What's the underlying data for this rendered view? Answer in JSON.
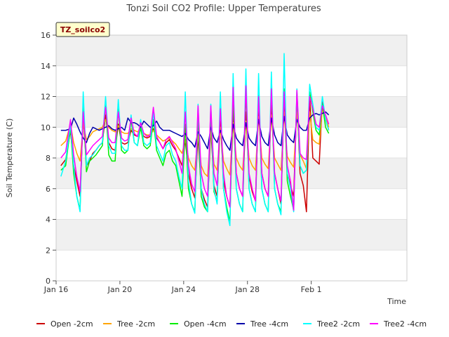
{
  "chart_data": {
    "type": "line",
    "title": "Tonzi Soil CO2 Profile: Upper Temperatures",
    "xlabel": "Time",
    "ylabel": "Soil Temperature (C)",
    "ylim": [
      0,
      16
    ],
    "yticks": [
      "0",
      "2",
      "4",
      "6",
      "8",
      "10",
      "12",
      "14",
      "16"
    ],
    "xlim": [
      0,
      22
    ],
    "xticks": [
      {
        "day": 0,
        "label": "Jan 16"
      },
      {
        "day": 4,
        "label": "Jan 20"
      },
      {
        "day": 8,
        "label": "Jan 24"
      },
      {
        "day": 12,
        "label": "Jan 28"
      },
      {
        "day": 16,
        "label": "Feb 1"
      }
    ],
    "badge": "TZ_soilco2",
    "grid": "horizontal bands",
    "legend_position": "bottom",
    "series": [
      {
        "name": "Open -2cm",
        "color": "#cc0000",
        "x": [
          0.3,
          0.6,
          0.9,
          1.1,
          1.3,
          1.5,
          1.7,
          1.9,
          2.1,
          2.3,
          2.5,
          2.7,
          2.9,
          3.1,
          3.3,
          3.5,
          3.7,
          3.9,
          4.1,
          4.3,
          4.5,
          4.7,
          4.9,
          5.1,
          5.3,
          5.5,
          5.7,
          5.9,
          6.1,
          6.3,
          6.5,
          6.7,
          6.9,
          7.1,
          7.3,
          7.5,
          7.7,
          7.9,
          8.1,
          8.3,
          8.5,
          8.7,
          8.9,
          9.1,
          9.3,
          9.5,
          9.7,
          9.9,
          10.1,
          10.3,
          10.5,
          10.7,
          10.9,
          11.1,
          11.3,
          11.5,
          11.7,
          11.9,
          12.1,
          12.3,
          12.5,
          12.7,
          12.9,
          13.1,
          13.3,
          13.5,
          13.7,
          13.9,
          14.1,
          14.3,
          14.5,
          14.7,
          14.9,
          15.1,
          15.3,
          15.5,
          15.7,
          15.9,
          16.1,
          16.3,
          16.5,
          16.7,
          16.9,
          17.1
        ],
        "y": [
          7.5,
          7.9,
          9.8,
          7.5,
          6.5,
          5.5,
          10.8,
          7.5,
          7.8,
          8.3,
          8.5,
          8.8,
          9.0,
          10.8,
          9.0,
          8.6,
          8.5,
          10.2,
          9.0,
          8.9,
          9.0,
          9.8,
          9.5,
          9.4,
          9.9,
          9.4,
          9.3,
          9.4,
          9.9,
          9.3,
          9.0,
          8.6,
          9.0,
          9.2,
          8.8,
          8.5,
          8.0,
          7.5,
          9.2,
          7.0,
          6.0,
          5.4,
          9.5,
          6.0,
          5.3,
          4.8,
          10.0,
          6.2,
          5.5,
          10.5,
          6.5,
          5.5,
          4.8,
          10.8,
          7.0,
          6.0,
          5.5,
          11.0,
          6.8,
          5.8,
          5.2,
          11.5,
          7.0,
          6.0,
          5.5,
          11.8,
          7.0,
          6.0,
          5.0,
          12.0,
          7.0,
          6.2,
          5.5,
          12.0,
          7.0,
          6.2,
          4.5,
          12.0,
          8.0,
          7.8,
          7.6,
          11.8,
          10.5,
          9.8
        ]
      },
      {
        "name": "Tree -2cm",
        "color": "#ffa500",
        "x": [
          0.3,
          0.6,
          0.9,
          1.1,
          1.3,
          1.5,
          1.7,
          1.9,
          2.1,
          2.3,
          2.5,
          2.7,
          2.9,
          3.1,
          3.3,
          3.5,
          3.7,
          3.9,
          4.1,
          4.3,
          4.5,
          4.7,
          4.9,
          5.1,
          5.3,
          5.5,
          5.7,
          5.9,
          6.1,
          6.3,
          6.5,
          6.7,
          6.9,
          7.1,
          7.3,
          7.5,
          7.7,
          7.9,
          8.1,
          8.3,
          8.5,
          8.7,
          8.9,
          9.1,
          9.3,
          9.5,
          9.7,
          9.9,
          10.1,
          10.3,
          10.5,
          10.7,
          10.9,
          11.1,
          11.3,
          11.5,
          11.7,
          11.9,
          12.1,
          12.3,
          12.5,
          12.7,
          12.9,
          13.1,
          13.3,
          13.5,
          13.7,
          13.9,
          14.1,
          14.3,
          14.5,
          14.7,
          14.9,
          15.1,
          15.3,
          15.5,
          15.7,
          15.9,
          16.1,
          16.3,
          16.5,
          16.7,
          16.9,
          17.1
        ],
        "y": [
          8.8,
          9.1,
          10.2,
          9.0,
          8.3,
          7.8,
          10.3,
          9.2,
          9.4,
          9.7,
          9.8,
          9.9,
          10.0,
          10.5,
          10.0,
          9.8,
          9.7,
          10.1,
          9.7,
          9.6,
          9.6,
          9.9,
          9.8,
          9.7,
          9.9,
          9.6,
          9.5,
          9.5,
          9.8,
          9.5,
          9.3,
          9.1,
          9.2,
          9.3,
          9.1,
          8.9,
          8.6,
          8.3,
          9.2,
          8.0,
          7.5,
          7.2,
          9.5,
          7.5,
          7.0,
          6.8,
          9.8,
          7.6,
          7.2,
          10.0,
          7.8,
          7.3,
          6.9,
          10.3,
          8.0,
          7.5,
          7.2,
          10.4,
          8.0,
          7.5,
          7.2,
          10.7,
          8.0,
          7.6,
          7.3,
          10.8,
          8.0,
          7.6,
          7.2,
          11.0,
          8.1,
          7.7,
          7.4,
          11.0,
          8.2,
          7.8,
          7.3,
          11.0,
          9.2,
          9.0,
          8.9,
          11.2,
          10.8,
          10.0
        ]
      },
      {
        "name": "Open -4cm",
        "color": "#00ee00",
        "x": [
          0.3,
          0.6,
          0.9,
          1.1,
          1.3,
          1.5,
          1.7,
          1.9,
          2.1,
          2.3,
          2.5,
          2.7,
          2.9,
          3.1,
          3.3,
          3.5,
          3.7,
          3.9,
          4.1,
          4.3,
          4.5,
          4.7,
          4.9,
          5.1,
          5.3,
          5.5,
          5.7,
          5.9,
          6.1,
          6.3,
          6.5,
          6.7,
          6.9,
          7.1,
          7.3,
          7.5,
          7.7,
          7.9,
          8.1,
          8.3,
          8.5,
          8.7,
          8.9,
          9.1,
          9.3,
          9.5,
          9.7,
          9.9,
          10.1,
          10.3,
          10.5,
          10.7,
          10.9,
          11.1,
          11.3,
          11.5,
          11.7,
          11.9,
          12.1,
          12.3,
          12.5,
          12.7,
          12.9,
          13.1,
          13.3,
          13.5,
          13.7,
          13.9,
          14.1,
          14.3,
          14.5,
          14.7,
          14.9,
          15.1,
          15.3,
          15.5,
          15.7,
          15.9,
          16.1,
          16.3,
          16.5,
          16.7,
          16.9,
          17.1
        ],
        "y": [
          7.2,
          7.5,
          10.0,
          7.0,
          5.5,
          4.6,
          11.5,
          7.1,
          7.8,
          8.0,
          8.2,
          8.5,
          8.8,
          11.5,
          8.2,
          7.8,
          7.8,
          11.2,
          8.5,
          8.3,
          8.5,
          10.5,
          9.0,
          8.8,
          10.0,
          8.8,
          8.6,
          8.8,
          10.5,
          8.5,
          8.0,
          7.5,
          8.3,
          8.5,
          7.8,
          7.5,
          6.5,
          5.5,
          10.2,
          6.0,
          5.0,
          4.5,
          10.8,
          5.5,
          4.8,
          4.5,
          11.0,
          5.8,
          5.2,
          11.5,
          6.0,
          4.8,
          3.8,
          12.0,
          6.0,
          5.0,
          4.5,
          12.5,
          6.0,
          5.0,
          4.5,
          12.2,
          6.0,
          5.0,
          4.5,
          12.6,
          6.0,
          5.0,
          4.5,
          12.5,
          6.5,
          5.5,
          4.6,
          12.3,
          7.5,
          7.0,
          7.2,
          12.3,
          11.0,
          9.8,
          9.5,
          11.5,
          10.0,
          9.6
        ]
      },
      {
        "name": "Tree -4cm",
        "color": "#0000aa",
        "x": [
          0.3,
          0.6,
          0.9,
          1.1,
          1.3,
          1.5,
          1.7,
          1.9,
          2.1,
          2.3,
          2.5,
          2.7,
          2.9,
          3.1,
          3.3,
          3.5,
          3.7,
          3.9,
          4.1,
          4.3,
          4.5,
          4.7,
          4.9,
          5.1,
          5.3,
          5.5,
          5.7,
          5.9,
          6.1,
          6.3,
          6.5,
          6.7,
          6.9,
          7.1,
          7.3,
          7.5,
          7.7,
          7.9,
          8.1,
          8.3,
          8.5,
          8.7,
          8.9,
          9.1,
          9.3,
          9.5,
          9.7,
          9.9,
          10.1,
          10.3,
          10.5,
          10.7,
          10.9,
          11.1,
          11.3,
          11.5,
          11.7,
          11.9,
          12.1,
          12.3,
          12.5,
          12.7,
          12.9,
          13.1,
          13.3,
          13.5,
          13.7,
          13.9,
          14.1,
          14.3,
          14.5,
          14.7,
          14.9,
          15.1,
          15.3,
          15.5,
          15.7,
          15.9,
          16.1,
          16.3,
          16.5,
          16.7,
          16.9,
          17.1
        ],
        "y": [
          9.8,
          9.8,
          9.9,
          10.6,
          10.2,
          9.7,
          9.3,
          9.0,
          9.6,
          10.0,
          9.9,
          9.8,
          9.9,
          10.0,
          10.1,
          9.9,
          9.8,
          9.9,
          10.0,
          9.8,
          10.6,
          10.3,
          10.3,
          10.2,
          10.0,
          10.4,
          10.2,
          10.0,
          10.1,
          10.4,
          10.0,
          9.8,
          9.8,
          9.8,
          9.7,
          9.6,
          9.5,
          9.4,
          9.6,
          9.2,
          9.0,
          8.7,
          9.7,
          9.4,
          9.0,
          8.6,
          10.0,
          9.3,
          9.0,
          9.8,
          9.2,
          8.8,
          8.5,
          10.2,
          9.3,
          9.0,
          8.8,
          10.3,
          9.3,
          9.0,
          8.8,
          10.5,
          9.4,
          9.0,
          8.8,
          10.6,
          9.5,
          9.0,
          8.8,
          10.7,
          9.5,
          9.2,
          9.0,
          10.5,
          10.0,
          9.8,
          9.8,
          10.6,
          10.8,
          10.9,
          10.8,
          10.9,
          11.0,
          10.8
        ]
      },
      {
        "name": "Tree2 -2cm",
        "color": "#00ffff",
        "x": [
          0.3,
          0.6,
          0.9,
          1.1,
          1.3,
          1.5,
          1.7,
          1.9,
          2.1,
          2.3,
          2.5,
          2.7,
          2.9,
          3.1,
          3.3,
          3.5,
          3.7,
          3.9,
          4.1,
          4.3,
          4.5,
          4.7,
          4.9,
          5.1,
          5.3,
          5.5,
          5.7,
          5.9,
          6.1,
          6.3,
          6.5,
          6.7,
          6.9,
          7.1,
          7.3,
          7.5,
          7.7,
          7.9,
          8.1,
          8.3,
          8.5,
          8.7,
          8.9,
          9.1,
          9.3,
          9.5,
          9.7,
          9.9,
          10.1,
          10.3,
          10.5,
          10.7,
          10.9,
          11.1,
          11.3,
          11.5,
          11.7,
          11.9,
          12.1,
          12.3,
          12.5,
          12.7,
          12.9,
          13.1,
          13.3,
          13.5,
          13.7,
          13.9,
          14.1,
          14.3,
          14.5,
          14.7,
          14.9,
          15.1,
          15.3,
          15.5,
          15.7,
          15.9,
          16.1,
          16.3,
          16.5,
          16.7,
          16.9,
          17.1
        ],
        "y": [
          6.8,
          7.8,
          10.2,
          7.5,
          5.5,
          4.5,
          12.3,
          7.5,
          8.0,
          8.2,
          8.5,
          8.8,
          9.0,
          12.0,
          8.8,
          8.3,
          8.3,
          11.8,
          8.8,
          8.5,
          8.5,
          10.8,
          9.0,
          8.8,
          10.5,
          9.0,
          8.8,
          9.0,
          11.0,
          8.8,
          8.3,
          7.8,
          8.8,
          9.0,
          8.2,
          7.8,
          6.8,
          6.0,
          12.3,
          6.5,
          5.0,
          4.4,
          11.5,
          6.0,
          5.0,
          4.5,
          11.5,
          6.0,
          5.0,
          12.3,
          6.0,
          4.5,
          3.6,
          13.5,
          6.0,
          5.0,
          4.5,
          13.8,
          6.0,
          5.0,
          4.5,
          13.5,
          6.0,
          5.0,
          4.5,
          13.6,
          6.0,
          5.0,
          4.3,
          14.8,
          7.0,
          6.0,
          4.5,
          12.5,
          7.5,
          7.0,
          7.2,
          12.8,
          11.5,
          10.0,
          9.8,
          12.0,
          10.5,
          9.8
        ]
      },
      {
        "name": "Tree2 -4cm",
        "color": "#ff00ff",
        "x": [
          0.3,
          0.6,
          0.9,
          1.1,
          1.3,
          1.5,
          1.7,
          1.9,
          2.1,
          2.3,
          2.5,
          2.7,
          2.9,
          3.1,
          3.3,
          3.5,
          3.7,
          3.9,
          4.1,
          4.3,
          4.5,
          4.7,
          4.9,
          5.1,
          5.3,
          5.5,
          5.7,
          5.9,
          6.1,
          6.3,
          6.5,
          6.7,
          6.9,
          7.1,
          7.3,
          7.5,
          7.7,
          7.9,
          8.1,
          8.3,
          8.5,
          8.7,
          8.9,
          9.1,
          9.3,
          9.5,
          9.7,
          9.9,
          10.1,
          10.3,
          10.5,
          10.7,
          10.9,
          11.1,
          11.3,
          11.5,
          11.7,
          11.9,
          12.1,
          12.3,
          12.5,
          12.7,
          12.9,
          13.1,
          13.3,
          13.5,
          13.7,
          13.9,
          14.1,
          14.3,
          14.5,
          14.7,
          14.9,
          15.1,
          15.3,
          15.5,
          15.7,
          15.9,
          16.1,
          16.3,
          16.5,
          16.7,
          16.9,
          17.1
        ],
        "y": [
          8.0,
          8.4,
          10.5,
          8.2,
          6.8,
          5.8,
          11.0,
          8.2,
          8.5,
          8.8,
          9.0,
          9.2,
          9.4,
          11.3,
          9.3,
          9.0,
          9.0,
          11.0,
          9.3,
          9.1,
          9.2,
          10.6,
          9.6,
          9.4,
          10.3,
          9.6,
          9.4,
          9.5,
          11.3,
          9.4,
          9.0,
          8.6,
          9.2,
          9.4,
          9.0,
          8.6,
          7.8,
          7.0,
          11.0,
          7.5,
          6.3,
          5.8,
          11.4,
          7.0,
          6.0,
          5.5,
          11.4,
          7.0,
          6.2,
          11.2,
          7.0,
          5.5,
          4.8,
          12.6,
          7.0,
          6.0,
          5.5,
          12.7,
          7.0,
          6.0,
          5.2,
          12.0,
          7.0,
          6.0,
          5.5,
          12.5,
          7.0,
          6.0,
          5.2,
          12.3,
          7.5,
          6.5,
          4.6,
          12.4,
          8.3,
          8.0,
          7.9,
          12.0,
          11.2,
          10.2,
          10.0,
          11.4,
          10.8,
          10.2
        ]
      }
    ]
  }
}
